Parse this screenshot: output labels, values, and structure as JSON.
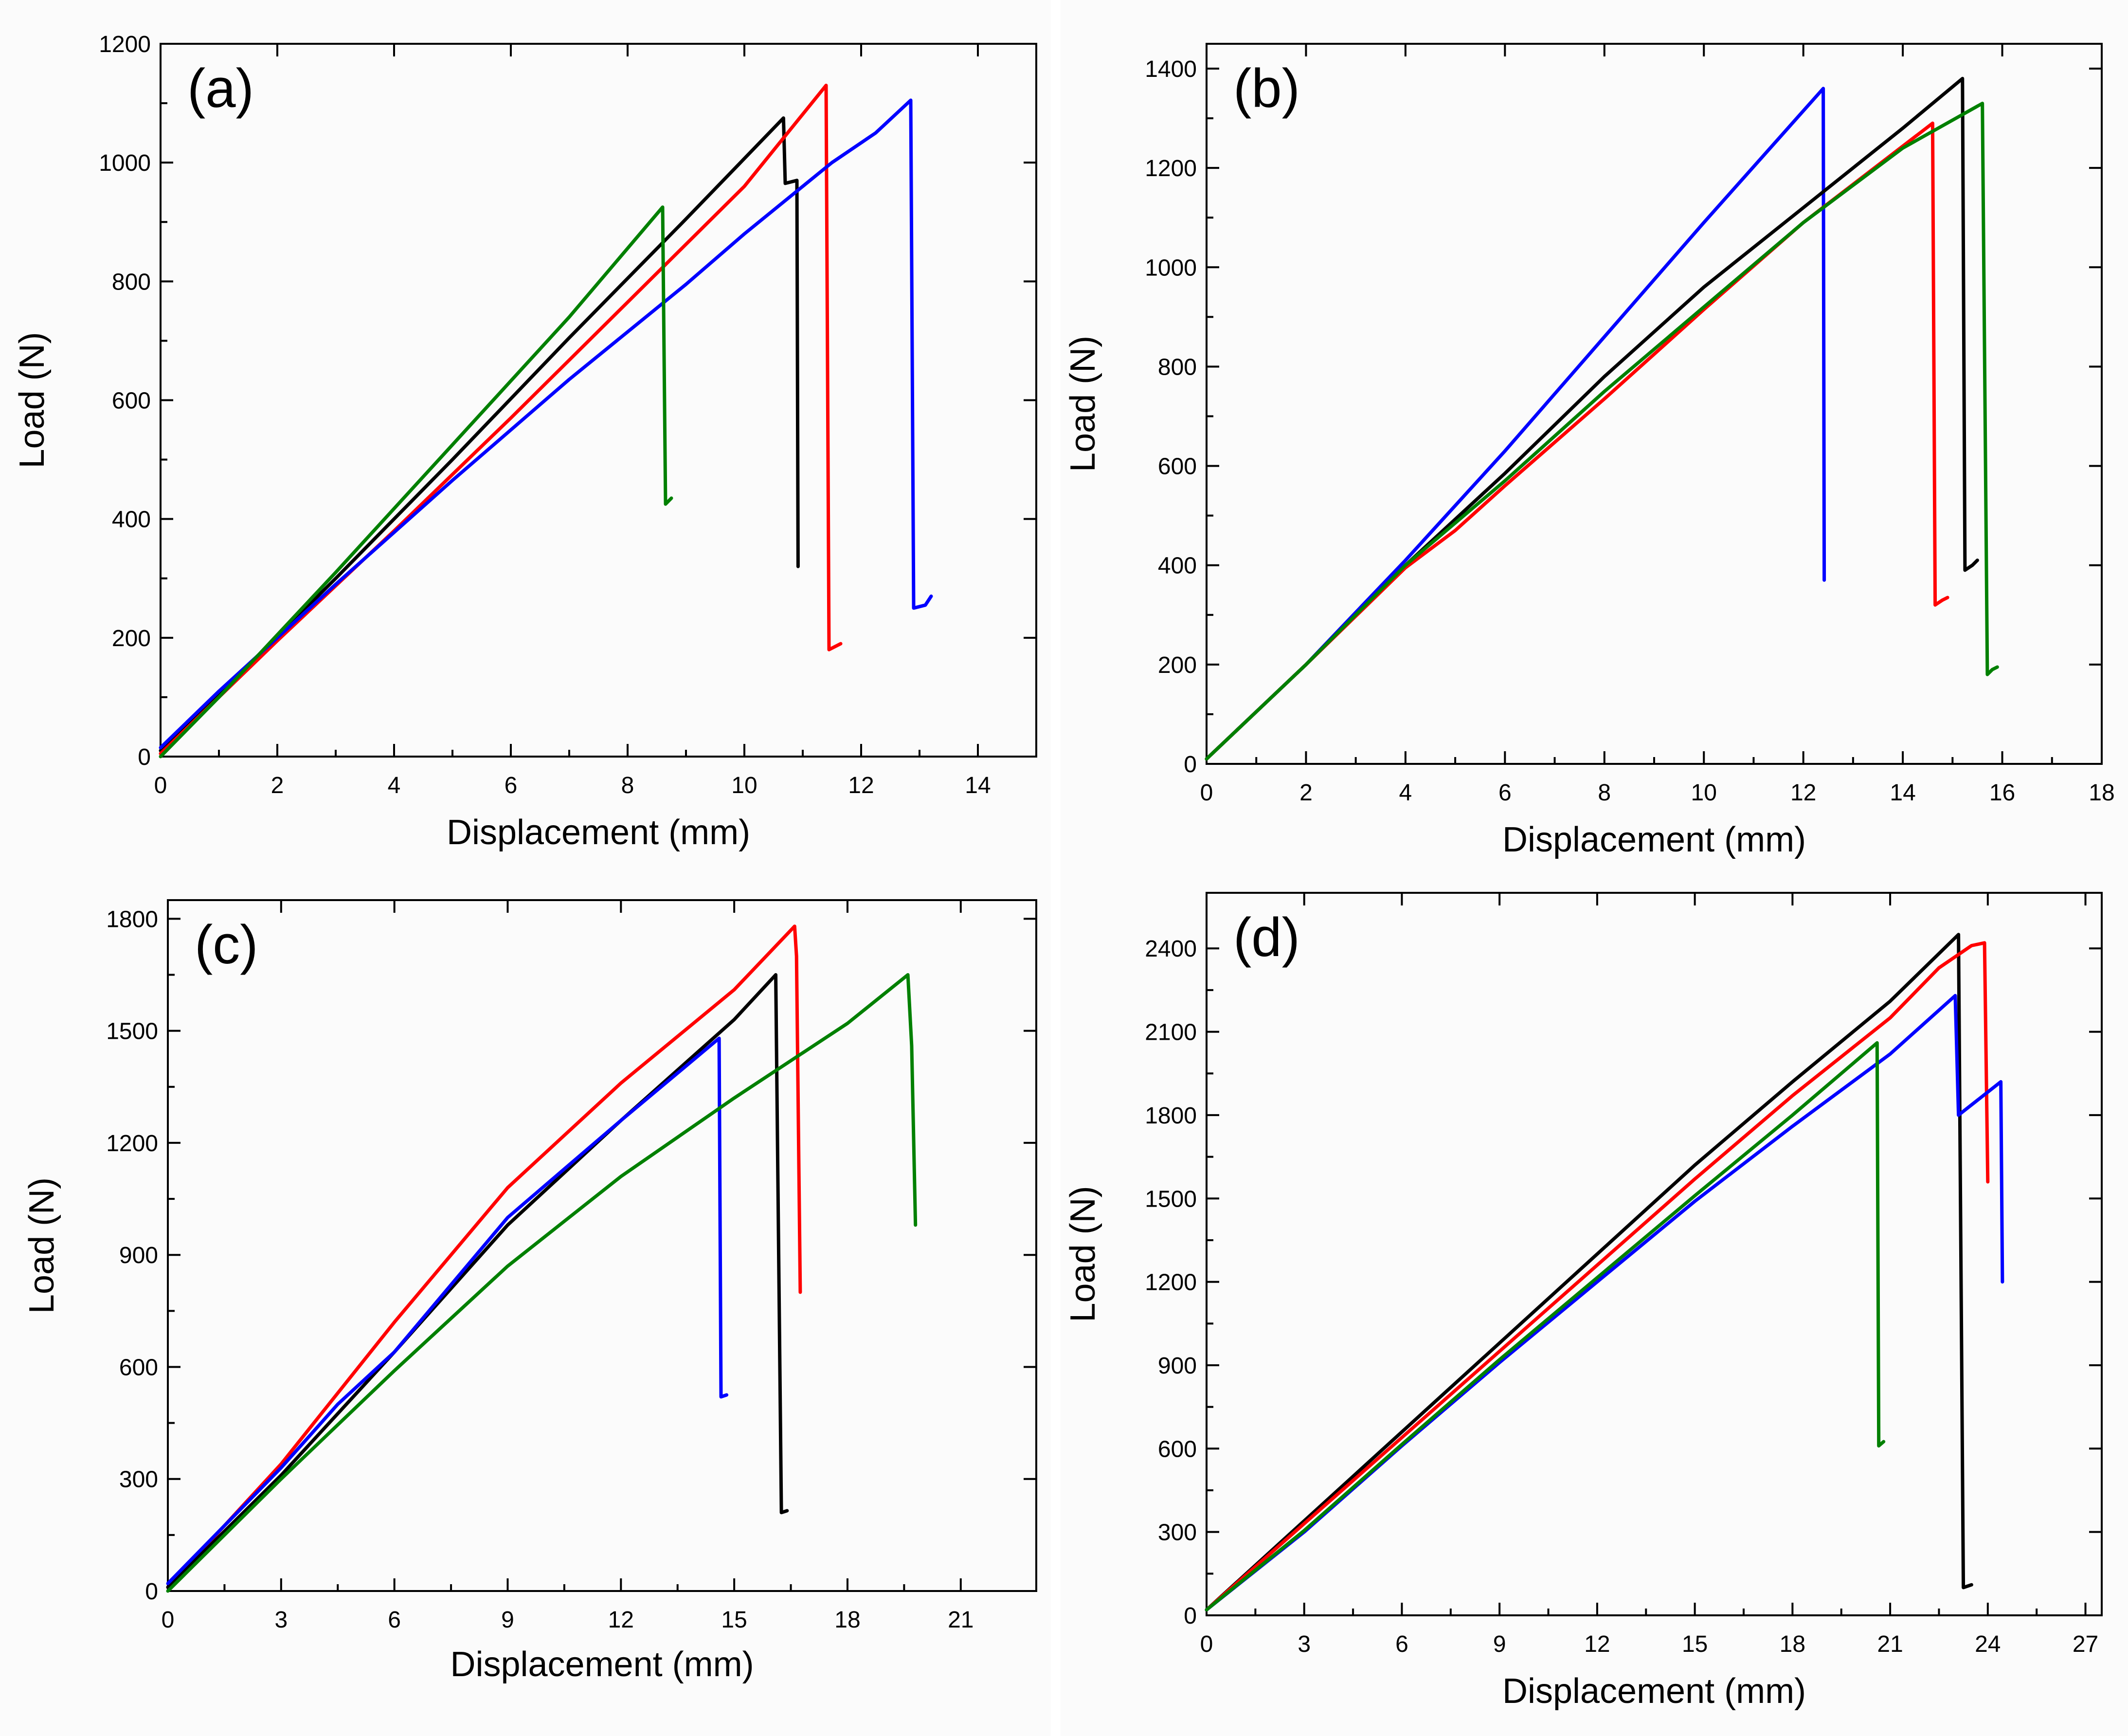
{
  "chart_data": [
    {
      "type": "line",
      "panel_label": "(a)",
      "xlabel": "Displacement (mm)",
      "ylabel": "Load (N)",
      "xlim": [
        0,
        15
      ],
      "ylim": [
        0,
        1200
      ],
      "xticks": [
        "0",
        "2",
        "4",
        "6",
        "8",
        "10",
        "12",
        "14"
      ],
      "xtick_values": [
        0,
        2,
        4,
        6,
        8,
        10,
        12,
        14
      ],
      "yticks": [
        "0",
        "200",
        "400",
        "600",
        "800",
        "1000",
        "1200"
      ],
      "ytick_values": [
        0,
        200,
        400,
        600,
        800,
        1000,
        1200
      ],
      "series": [
        {
          "color": "#000000",
          "points": [
            [
              0,
              10
            ],
            [
              1,
              105
            ],
            [
              3,
              300
            ],
            [
              5,
              500
            ],
            [
              7,
              705
            ],
            [
              9,
              905
            ],
            [
              10.67,
              1075
            ],
            [
              10.7,
              965
            ],
            [
              10.9,
              970
            ],
            [
              10.92,
              320
            ]
          ]
        },
        {
          "color": "#ff0000",
          "points": [
            [
              0,
              5
            ],
            [
              2,
              195
            ],
            [
              4,
              380
            ],
            [
              6,
              570
            ],
            [
              8,
              765
            ],
            [
              10,
              960
            ],
            [
              11.4,
              1130
            ],
            [
              11.45,
              180
            ],
            [
              11.55,
              185
            ],
            [
              11.65,
              190
            ]
          ]
        },
        {
          "color": "#0000ff",
          "points": [
            [
              0,
              15
            ],
            [
              1,
              110
            ],
            [
              3,
              290
            ],
            [
              5,
              465
            ],
            [
              7,
              635
            ],
            [
              9,
              795
            ],
            [
              10,
              880
            ],
            [
              11,
              960
            ],
            [
              11.5,
              1000
            ],
            [
              12.25,
              1050
            ],
            [
              12.85,
              1105
            ],
            [
              12.9,
              250
            ],
            [
              13.1,
              255
            ],
            [
              13.2,
              270
            ]
          ]
        },
        {
          "color": "#008000",
          "points": [
            [
              0,
              0
            ],
            [
              1,
              100
            ],
            [
              3,
              310
            ],
            [
              5,
              525
            ],
            [
              7,
              740
            ],
            [
              8.6,
              925
            ],
            [
              8.65,
              425
            ],
            [
              8.75,
              435
            ]
          ]
        }
      ]
    },
    {
      "type": "line",
      "panel_label": "(b)",
      "xlabel": "Displacement (mm)",
      "ylabel": "Load (N)",
      "xlim": [
        0,
        18
      ],
      "ylim": [
        0,
        1450
      ],
      "xticks": [
        "0",
        "2",
        "4",
        "6",
        "8",
        "10",
        "12",
        "14",
        "16",
        "18"
      ],
      "xtick_values": [
        0,
        2,
        4,
        6,
        8,
        10,
        12,
        14,
        16,
        18
      ],
      "yticks": [
        "0",
        "200",
        "400",
        "600",
        "800",
        "1000",
        "1200",
        "1400"
      ],
      "ytick_values": [
        0,
        200,
        400,
        600,
        800,
        1000,
        1200,
        1400
      ],
      "series": [
        {
          "color": "#0000ff",
          "points": [
            [
              0,
              10
            ],
            [
              2,
              200
            ],
            [
              4,
              410
            ],
            [
              6,
              630
            ],
            [
              8,
              860
            ],
            [
              10,
              1090
            ],
            [
              12.4,
              1360
            ],
            [
              12.42,
              370
            ]
          ]
        },
        {
          "color": "#000000",
          "points": [
            [
              0,
              10
            ],
            [
              2,
              200
            ],
            [
              4,
              400
            ],
            [
              6,
              585
            ],
            [
              8,
              780
            ],
            [
              10,
              960
            ],
            [
              12,
              1120
            ],
            [
              14,
              1280
            ],
            [
              15.2,
              1380
            ],
            [
              15.25,
              390
            ],
            [
              15.4,
              400
            ],
            [
              15.5,
              410
            ]
          ]
        },
        {
          "color": "#ff0000",
          "points": [
            [
              0,
              10
            ],
            [
              2,
              200
            ],
            [
              4,
              395
            ],
            [
              5,
              470
            ],
            [
              6,
              560
            ],
            [
              8,
              735
            ],
            [
              10,
              915
            ],
            [
              12,
              1090
            ],
            [
              14.6,
              1290
            ],
            [
              14.65,
              320
            ],
            [
              14.8,
              330
            ],
            [
              14.9,
              335
            ]
          ]
        },
        {
          "color": "#008000",
          "points": [
            [
              0,
              10
            ],
            [
              2,
              200
            ],
            [
              4,
              400
            ],
            [
              6,
              570
            ],
            [
              8,
              750
            ],
            [
              10,
              920
            ],
            [
              12,
              1090
            ],
            [
              14,
              1240
            ],
            [
              15.6,
              1330
            ],
            [
              15.7,
              180
            ],
            [
              15.8,
              190
            ],
            [
              15.9,
              195
            ]
          ]
        }
      ]
    },
    {
      "type": "line",
      "panel_label": "(c)",
      "xlabel": "Displacement (mm)",
      "ylabel": "Load (N)",
      "xlim": [
        0,
        23
      ],
      "ylim": [
        0,
        1850
      ],
      "xticks": [
        "0",
        "3",
        "6",
        "9",
        "12",
        "15",
        "18",
        "21"
      ],
      "xtick_values": [
        0,
        3,
        6,
        9,
        12,
        15,
        18,
        21
      ],
      "yticks": [
        "0",
        "300",
        "600",
        "900",
        "1200",
        "1500",
        "1800"
      ],
      "ytick_values": [
        0,
        300,
        600,
        900,
        1200,
        1500,
        1800
      ],
      "series": [
        {
          "color": "#ff0000",
          "points": [
            [
              0,
              10
            ],
            [
              3,
              340
            ],
            [
              6,
              720
            ],
            [
              9,
              1080
            ],
            [
              12,
              1360
            ],
            [
              15,
              1610
            ],
            [
              16.6,
              1780
            ],
            [
              16.65,
              1700
            ],
            [
              16.75,
              800
            ]
          ]
        },
        {
          "color": "#000000",
          "points": [
            [
              0,
              10
            ],
            [
              3,
              310
            ],
            [
              6,
              640
            ],
            [
              9,
              980
            ],
            [
              12,
              1260
            ],
            [
              15,
              1530
            ],
            [
              16.1,
              1650
            ],
            [
              16.25,
              210
            ],
            [
              16.4,
              215
            ]
          ]
        },
        {
          "color": "#0000ff",
          "points": [
            [
              0,
              20
            ],
            [
              3,
              330
            ],
            [
              4.5,
              500
            ],
            [
              6,
              640
            ],
            [
              9,
              1000
            ],
            [
              12,
              1260
            ],
            [
              14.6,
              1480
            ],
            [
              14.65,
              520
            ],
            [
              14.8,
              525
            ]
          ]
        },
        {
          "color": "#008000",
          "points": [
            [
              0,
              0
            ],
            [
              3,
              300
            ],
            [
              6,
              590
            ],
            [
              9,
              870
            ],
            [
              12,
              1110
            ],
            [
              15,
              1320
            ],
            [
              18,
              1520
            ],
            [
              19.6,
              1650
            ],
            [
              19.7,
              1460
            ],
            [
              19.8,
              980
            ]
          ]
        }
      ]
    },
    {
      "type": "line",
      "panel_label": "(d)",
      "xlabel": "Displacement (mm)",
      "ylabel": "Load (N)",
      "xlim": [
        0,
        27.5
      ],
      "ylim": [
        0,
        2600
      ],
      "xticks": [
        "0",
        "3",
        "6",
        "9",
        "12",
        "15",
        "18",
        "21",
        "24",
        "27"
      ],
      "xtick_values": [
        0,
        3,
        6,
        9,
        12,
        15,
        18,
        21,
        24,
        27
      ],
      "yticks": [
        "0",
        "300",
        "600",
        "900",
        "1200",
        "1500",
        "1800",
        "2100",
        "2400"
      ],
      "ytick_values": [
        0,
        300,
        600,
        900,
        1200,
        1500,
        1800,
        2100,
        2400
      ],
      "series": [
        {
          "color": "#000000",
          "points": [
            [
              0,
              20
            ],
            [
              3,
              340
            ],
            [
              6,
              660
            ],
            [
              9,
              980
            ],
            [
              12,
              1300
            ],
            [
              15,
              1620
            ],
            [
              18,
              1920
            ],
            [
              21,
              2210
            ],
            [
              23.1,
              2450
            ],
            [
              23.25,
              100
            ],
            [
              23.5,
              110
            ]
          ]
        },
        {
          "color": "#ff0000",
          "points": [
            [
              0,
              20
            ],
            [
              3,
              330
            ],
            [
              6,
              640
            ],
            [
              9,
              950
            ],
            [
              12,
              1260
            ],
            [
              15,
              1570
            ],
            [
              18,
              1870
            ],
            [
              21,
              2150
            ],
            [
              22.5,
              2330
            ],
            [
              23.5,
              2410
            ],
            [
              23.9,
              2420
            ],
            [
              24,
              1560
            ]
          ]
        },
        {
          "color": "#0000ff",
          "points": [
            [
              0,
              20
            ],
            [
              3,
              300
            ],
            [
              6,
              610
            ],
            [
              9,
              910
            ],
            [
              12,
              1200
            ],
            [
              15,
              1490
            ],
            [
              18,
              1760
            ],
            [
              21,
              2020
            ],
            [
              23,
              2230
            ],
            [
              23.1,
              1800
            ],
            [
              24.4,
              1920
            ],
            [
              24.45,
              1200
            ]
          ]
        },
        {
          "color": "#008000",
          "points": [
            [
              0,
              20
            ],
            [
              3,
              305
            ],
            [
              6,
              615
            ],
            [
              9,
              920
            ],
            [
              12,
              1215
            ],
            [
              15,
              1510
            ],
            [
              18,
              1800
            ],
            [
              20.6,
              2060
            ],
            [
              20.65,
              610
            ],
            [
              20.8,
              625
            ]
          ]
        }
      ]
    }
  ]
}
